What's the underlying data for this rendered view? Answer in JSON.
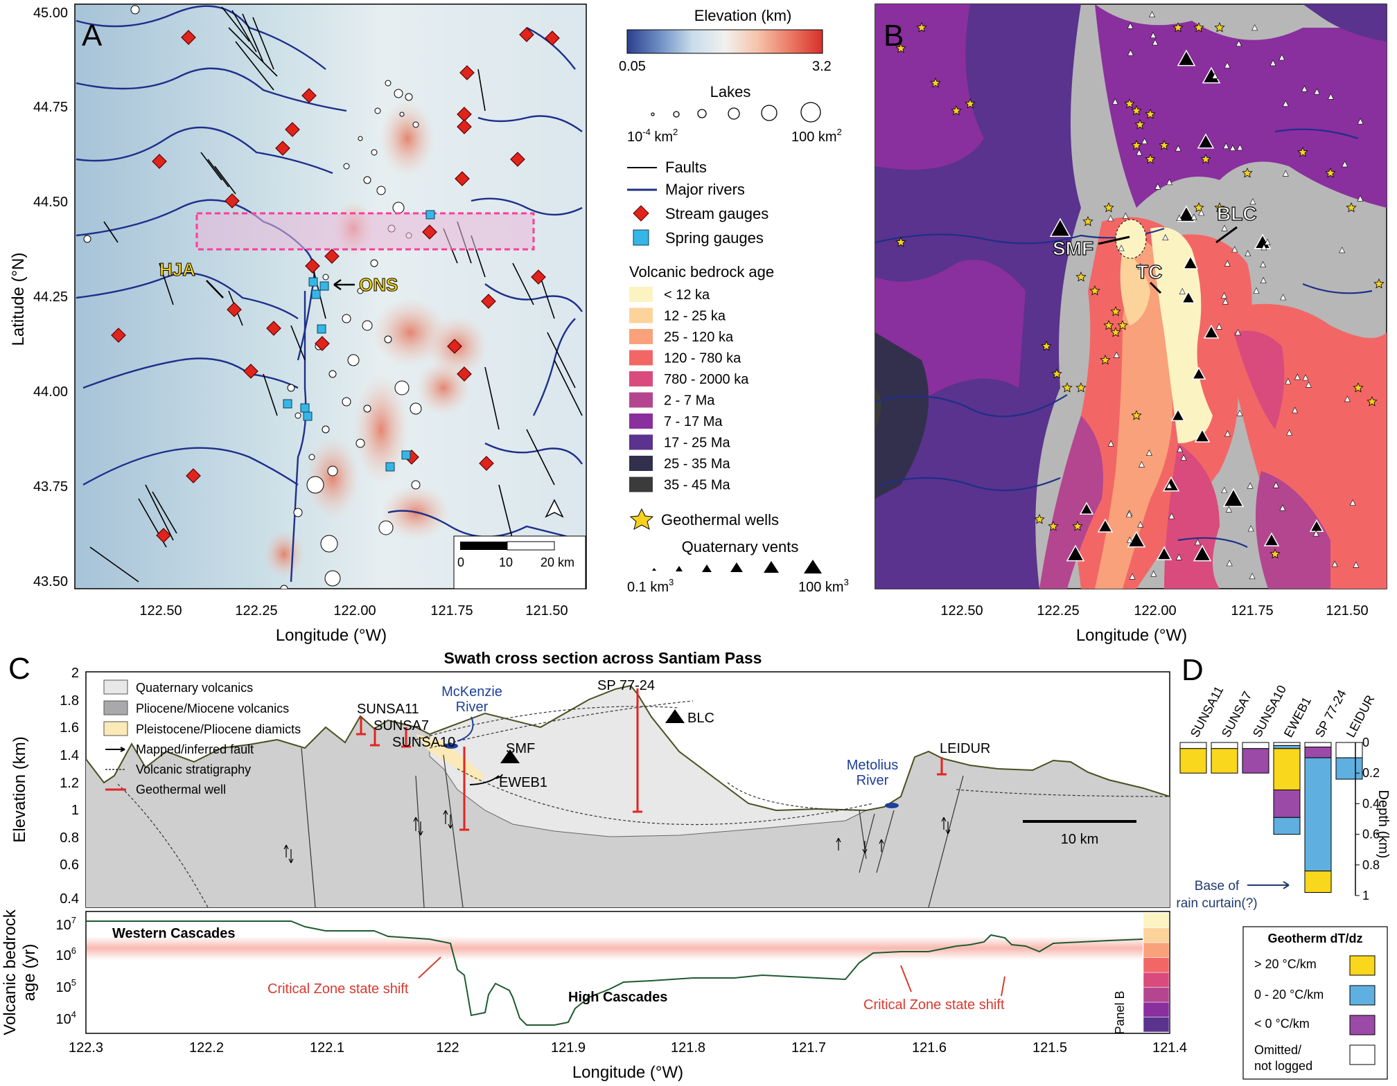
{
  "panels": {
    "a": "A",
    "b": "B",
    "c": "C",
    "d": "D"
  },
  "colors": {
    "water_blue": "#1e2f8a",
    "gauge_red": "#e0241c",
    "spring_cyan": "#36b6e6",
    "fault": "#000000",
    "swath_pink": "#ff3b9a",
    "label_yellow": "#f5d31a",
    "well_red": "#e52320",
    "star_yellow": "#f7d11d",
    "river_label": "#1e3f9a",
    "annot_red": "#d83a2e"
  },
  "map_a": {
    "annotations": {
      "hja": "HJA",
      "ons": "ONS"
    },
    "scalebar": {
      "t0": "0",
      "t1": "10",
      "t2": "20 km"
    },
    "north_icon": "north-arrow-icon"
  },
  "map_b": {
    "annotations": {
      "smf": "SMF",
      "blc": "BLC",
      "tc": "TC"
    }
  },
  "map_axes": {
    "ylabel": "Latitude (°N)",
    "xlabel": "Longitude (°W)",
    "yticks": [
      "45.00",
      "44.75",
      "44.50",
      "44.25",
      "44.00",
      "43.75",
      "43.50"
    ],
    "xticks": [
      "122.50",
      "122.25",
      "122.00",
      "121.75",
      "121.50"
    ]
  },
  "legend": {
    "elevation": {
      "title": "Elevation (km)",
      "min": "0.05",
      "max": "3.2",
      "stops": [
        "#2b3f8f",
        "#6f8fc4",
        "#c8dcea",
        "#f1f1ef",
        "#f6c3ab",
        "#ea7b66",
        "#d7302a"
      ]
    },
    "lakes": {
      "title": "Lakes",
      "min_pre": "10",
      "min_exp": "-4",
      "min_unit": " km",
      "min_unit_exp": "2",
      "max_pre": "100 km",
      "max_exp": "2"
    },
    "faults": "Faults",
    "rivers": "Major rivers",
    "stream_gauges": "Stream gauges",
    "spring_gauges": "Spring gauges",
    "age_title": "Volcanic bedrock age",
    "ages": [
      {
        "label": "< 12 ka",
        "color": "#fcf3c2"
      },
      {
        "label": "12 - 25 ka",
        "color": "#fcd39b"
      },
      {
        "label": "25 - 120 ka",
        "color": "#f9a17a"
      },
      {
        "label": "120 - 780 ka",
        "color": "#f26766"
      },
      {
        "label": "780 - 2000 ka",
        "color": "#d94b7c"
      },
      {
        "label": "2 - 7 Ma",
        "color": "#b4468f"
      },
      {
        "label": "7 - 17 Ma",
        "color": "#8a2f9e"
      },
      {
        "label": "17 - 25 Ma",
        "color": "#59338d"
      },
      {
        "label": "25 - 35 Ma",
        "color": "#33304d"
      },
      {
        "label": "35 - 45 Ma",
        "color": "#3b3b3b"
      }
    ],
    "geo_wells": "Geothermal wells",
    "vents": {
      "title": "Quaternary vents",
      "min_pre": "0.1 km",
      "min_exp": "3",
      "max_pre": "100 km",
      "max_exp": "3"
    }
  },
  "section": {
    "title": "Swath cross section across Santiam Pass",
    "ylabel": "Elevation (km)",
    "yticks": [
      "2",
      "1.8",
      "1.6",
      "1.4",
      "1.2",
      "1",
      "0.8",
      "0.6",
      "0.4"
    ],
    "legend": [
      "Quaternary volcanics",
      "Pliocene/Miocene volcanics",
      "Pleistocene/Pliocene diamicts",
      "Mapped/inferred fault",
      "Volcanic stratigraphy",
      "Geothermal well"
    ],
    "wells": {
      "sunsa11": "SUNSA11",
      "sunsa7": "SUNSA7",
      "sunsa10": "SUNSA10",
      "sp": "SP 77-24",
      "eweb1": "EWEB1",
      "leidur": "LEIDUR"
    },
    "labels": {
      "smf": "SMF",
      "blc": "BLC",
      "mck1": "McKenzie",
      "mck2": "River",
      "met1": "Metolius",
      "met2": "River"
    },
    "scalebar": "10 km"
  },
  "age_profile": {
    "ylabel1": "Volcanic bedrock",
    "ylabel2": "age (yr)",
    "yticks": [
      {
        "b": "10",
        "e": "7"
      },
      {
        "b": "10",
        "e": "6"
      },
      {
        "b": "10",
        "e": "5"
      },
      {
        "b": "10",
        "e": "4"
      }
    ],
    "western": "Western Cascades",
    "high": "High Cascades",
    "shift": "Critical Zone state shift",
    "panel_b": "Panel B",
    "xlabel": "Longitude (°W)",
    "xticks": [
      "122.3",
      "122.2",
      "122.1",
      "122",
      "121.9",
      "121.8",
      "121.7",
      "121.6",
      "121.5",
      "121.4"
    ]
  },
  "chart_data": {
    "type": "bar",
    "categories": [
      "SUNSA11",
      "SUNSA7",
      "SUNSA10",
      "EWEB1",
      "SP 77-24",
      "LEIDUR"
    ],
    "ylabel": "Depth (km)",
    "yticks": [
      "0",
      "0.2",
      "0.4",
      "0.6",
      "0.8",
      "1"
    ],
    "ylim": [
      0,
      1
    ],
    "segments": [
      [
        {
          "class": "omitted",
          "from": 0,
          "to": 0.04
        },
        {
          "class": "gt20",
          "from": 0.04,
          "to": 0.2
        }
      ],
      [
        {
          "class": "omitted",
          "from": 0,
          "to": 0.04
        },
        {
          "class": "gt20",
          "from": 0.04,
          "to": 0.2
        }
      ],
      [
        {
          "class": "omitted",
          "from": 0,
          "to": 0.04
        },
        {
          "class": "lt0",
          "from": 0.04,
          "to": 0.2
        }
      ],
      [
        {
          "class": "omitted",
          "from": 0,
          "to": 0.02
        },
        {
          "class": "mid",
          "from": 0.02,
          "to": 0.04
        },
        {
          "class": "gt20",
          "from": 0.04,
          "to": 0.31
        },
        {
          "class": "lt0",
          "from": 0.31,
          "to": 0.49
        },
        {
          "class": "mid",
          "from": 0.49,
          "to": 0.6
        }
      ],
      [
        {
          "class": "omitted",
          "from": 0,
          "to": 0.03
        },
        {
          "class": "lt0",
          "from": 0.03,
          "to": 0.1
        },
        {
          "class": "mid",
          "from": 0.1,
          "to": 0.84
        },
        {
          "class": "gt20",
          "from": 0.84,
          "to": 0.98
        }
      ],
      [
        {
          "class": "omitted",
          "from": 0,
          "to": 0.1
        },
        {
          "class": "mid",
          "from": 0.1,
          "to": 0.24
        }
      ]
    ],
    "annotation1": "Base of",
    "annotation2": "rain curtain(?)",
    "legend_title": "Geotherm dT/dz",
    "legend": [
      {
        "key": "gt20",
        "label": "> 20 °C/km",
        "color": "#f9d71c"
      },
      {
        "key": "mid",
        "label": "0 - 20 °C/km",
        "color": "#5fb0e0"
      },
      {
        "key": "lt0",
        "label": "< 0 °C/km",
        "color": "#9b4aa8"
      },
      {
        "key": "omitted",
        "label1": "Omitted/",
        "label2": "not logged",
        "color": "#ffffff"
      }
    ]
  }
}
